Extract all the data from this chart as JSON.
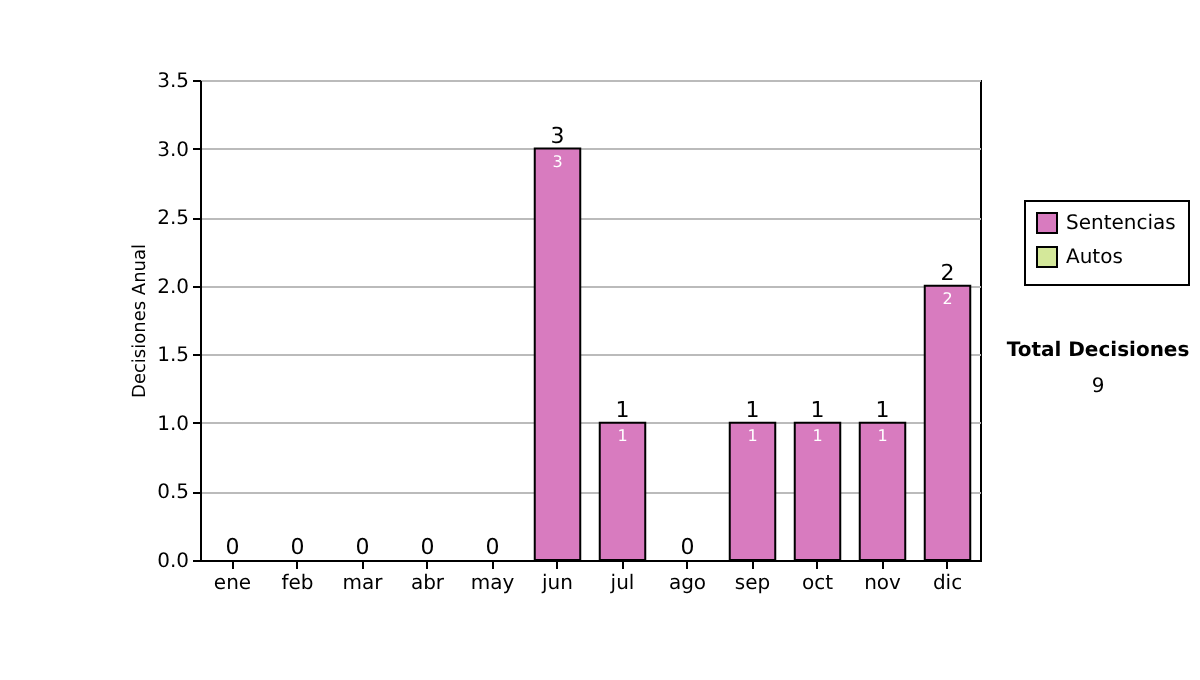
{
  "chart_data": {
    "type": "bar",
    "stacked": true,
    "ylabel": "Decisiones Anual",
    "categories": [
      "ene",
      "feb",
      "mar",
      "abr",
      "may",
      "jun",
      "jul",
      "ago",
      "sep",
      "oct",
      "nov",
      "dic"
    ],
    "series": [
      {
        "name": "Sentencias",
        "color": "#d87bbf",
        "values": [
          0,
          0,
          0,
          0,
          0,
          3,
          1,
          0,
          1,
          1,
          1,
          2
        ],
        "value_labels": [
          null,
          null,
          null,
          null,
          null,
          "3",
          "1",
          null,
          "1",
          "1",
          "1",
          "2"
        ]
      },
      {
        "name": "Autos",
        "color": "#d4e89a",
        "values": [
          0,
          0,
          0,
          0,
          0,
          0,
          0,
          0,
          0,
          0,
          0,
          0
        ]
      }
    ],
    "totals": [
      "0",
      "0",
      "0",
      "0",
      "0",
      "3",
      "1",
      "0",
      "1",
      "1",
      "1",
      "2"
    ],
    "ylim": [
      0,
      3.5
    ],
    "yticks": [
      {
        "value": 0,
        "label": "0.0"
      },
      0.5,
      {
        "value": 1,
        "label": "1.0"
      },
      1.5,
      {
        "value": 2,
        "label": "2.0"
      },
      2.5,
      {
        "value": 3,
        "label": "3.0"
      },
      3.5
    ],
    "grid": "y",
    "legend": "right",
    "annotations": [
      "Total Decisiones",
      "9"
    ]
  }
}
